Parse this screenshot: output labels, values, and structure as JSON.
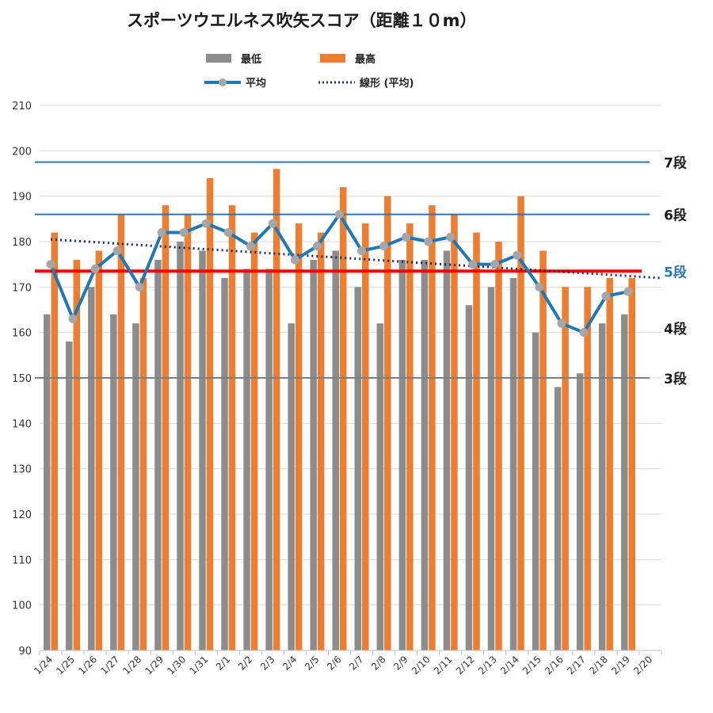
{
  "title": "スポーツウエルネス吹矢スコア（距離１０m）",
  "legend": {
    "min_label": "最低",
    "max_label": "最高",
    "avg_label": "平均",
    "trend_label": "線形 (平均)"
  },
  "colors": {
    "min": "#8c8c8c",
    "max": "#ed7d31",
    "avg": "#1f77b4",
    "avg_marker": "#a6a6a6",
    "trend": "#1f2d5c",
    "grid": "#d9d9d9",
    "rank_blue": "#2e75b6",
    "rank_red": "#ff0000",
    "rank_gray": "#7f7f7f"
  },
  "chart_data": {
    "type": "bar",
    "categories": [
      "1/24",
      "1/25",
      "1/26",
      "1/27",
      "1/28",
      "1/29",
      "1/30",
      "1/31",
      "2/1",
      "2/2",
      "2/3",
      "2/4",
      "2/5",
      "2/6",
      "2/7",
      "2/8",
      "2/9",
      "2/10",
      "2/11",
      "2/12",
      "2/13",
      "2/14",
      "2/15",
      "2/16",
      "2/17",
      "2/18",
      "2/19",
      "2/20"
    ],
    "ylim": [
      90,
      210
    ],
    "yticks": [
      90,
      100,
      110,
      120,
      130,
      140,
      150,
      160,
      170,
      180,
      190,
      200,
      210
    ],
    "series": [
      {
        "name": "最低",
        "kind": "bar",
        "values": [
          164,
          158,
          170,
          164,
          162,
          176,
          180,
          178,
          172,
          174,
          174,
          162,
          176,
          178,
          170,
          162,
          176,
          176,
          178,
          166,
          170,
          172,
          160,
          148,
          151,
          162,
          164,
          null
        ]
      },
      {
        "name": "最高",
        "kind": "bar",
        "values": [
          182,
          176,
          178,
          186,
          172,
          188,
          186,
          194,
          188,
          182,
          196,
          184,
          182,
          192,
          184,
          190,
          184,
          188,
          186,
          182,
          180,
          190,
          178,
          170,
          170,
          172,
          172,
          null
        ]
      },
      {
        "name": "平均",
        "kind": "line",
        "values": [
          175,
          163,
          174,
          178,
          170,
          182,
          182,
          184,
          182,
          179,
          184,
          176,
          179,
          186,
          178,
          179,
          181,
          180,
          181,
          175,
          175,
          177,
          170,
          162,
          160,
          168,
          169,
          null
        ]
      }
    ],
    "trendline": {
      "name": "線形 (平均)",
      "start": 180.5,
      "end": 172
    },
    "reference_lines": [
      {
        "label": "7段",
        "value": 197.5,
        "color": "#2e75b6",
        "label_color": "#1a1a1a"
      },
      {
        "label": "6段",
        "value": 186,
        "color": "#2e75b6",
        "label_color": "#1a1a1a"
      },
      {
        "label": "5段",
        "value": 173.5,
        "color": "#ff0000",
        "label_color": "#2e75b6"
      },
      {
        "label": "4段",
        "value": 161,
        "color": null,
        "label_color": "#1a1a1a"
      },
      {
        "label": "3段",
        "value": 150,
        "color": "#7f7f7f",
        "label_color": "#1a1a1a"
      }
    ]
  }
}
